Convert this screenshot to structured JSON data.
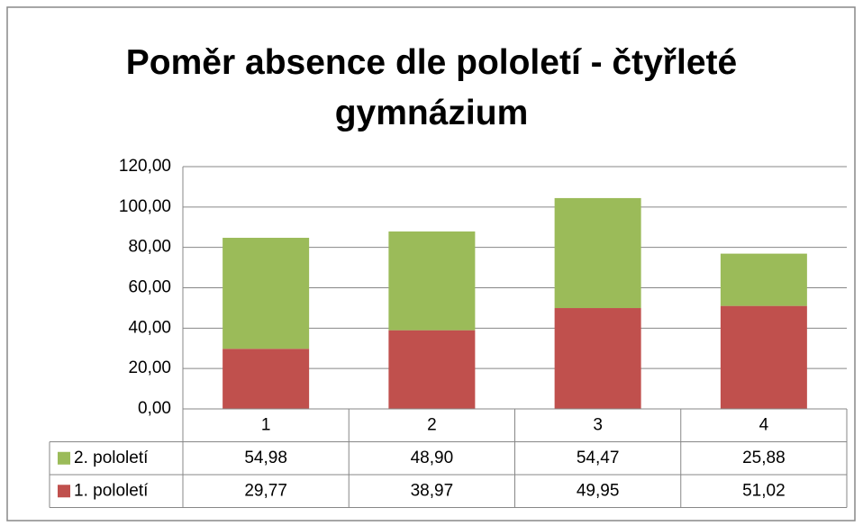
{
  "chart_data": {
    "type": "stacked_bar",
    "title": "Poměr absence dle pololetí - čtyřleté gymnázium",
    "categories": [
      "1",
      "2",
      "3",
      "4"
    ],
    "series": [
      {
        "name": "1. pololetí",
        "color": "#c0504d",
        "values": [
          29.77,
          38.97,
          49.95,
          51.02
        ],
        "value_labels": [
          "29,77",
          "38,97",
          "49,95",
          "51,02"
        ]
      },
      {
        "name": "2. pololetí",
        "color": "#9bbb59",
        "values": [
          54.98,
          48.9,
          54.47,
          25.88
        ],
        "value_labels": [
          "54,98",
          "48,90",
          "54,47",
          "25,88"
        ]
      }
    ],
    "ylim": [
      0,
      120
    ],
    "yticks": [
      {
        "value": 0,
        "label": "0,00"
      },
      {
        "value": 20,
        "label": "20,00"
      },
      {
        "value": 40,
        "label": "40,00"
      },
      {
        "value": 60,
        "label": "60,00"
      },
      {
        "value": 80,
        "label": "80,00"
      },
      {
        "value": 100,
        "label": "100,00"
      },
      {
        "value": 120,
        "label": "120,00"
      }
    ],
    "grid": true
  }
}
